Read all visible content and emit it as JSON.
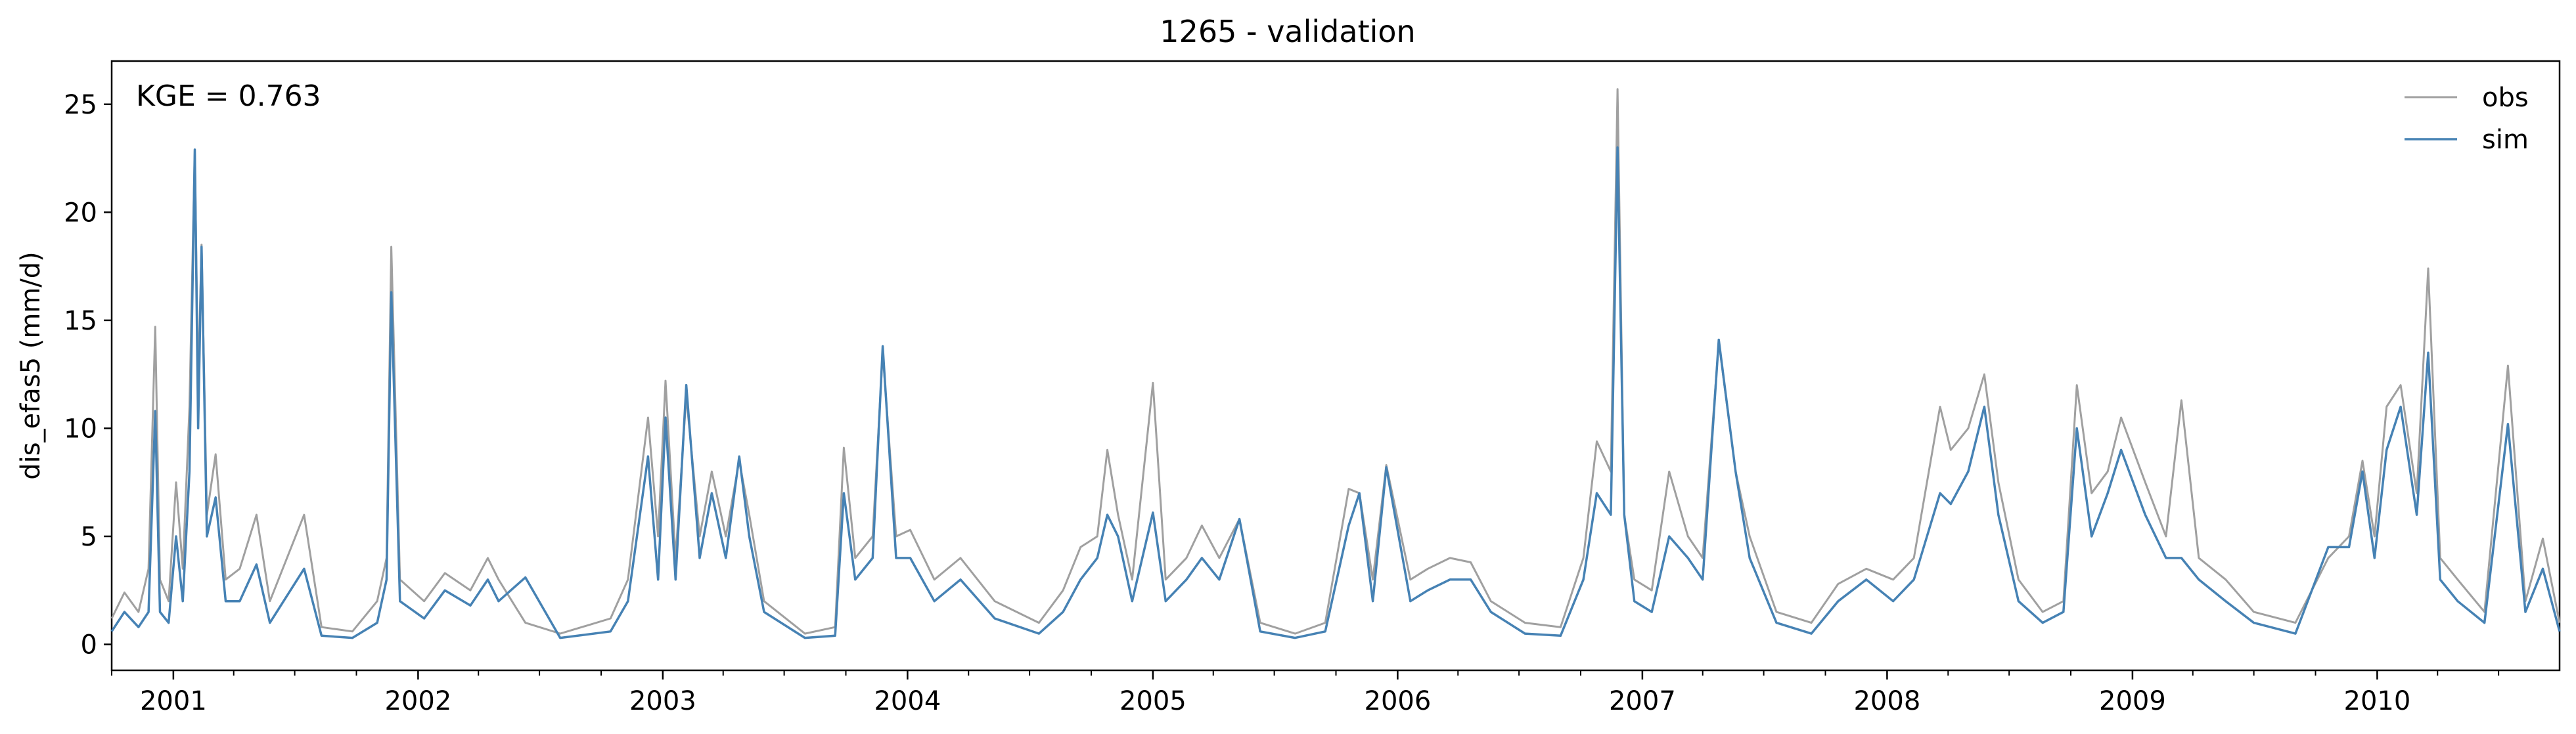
{
  "chart_data": {
    "type": "line",
    "title": "1265 - validation",
    "xlabel": "",
    "ylabel": "dis_efas5 (mm/d)",
    "annotation": "KGE = 0.763",
    "xlim": [
      "2000-10-01",
      "2010-09-30"
    ],
    "ylim": [
      -1.2,
      27
    ],
    "yticks": [
      0,
      5,
      10,
      15,
      20,
      25
    ],
    "xticks": [
      "2001-01-01",
      "2002-01-01",
      "2003-01-01",
      "2004-01-01",
      "2005-01-01",
      "2006-01-01",
      "2007-01-01",
      "2008-01-01",
      "2009-01-01",
      "2010-01-01"
    ],
    "xtick_labels": [
      "2001",
      "2002",
      "2003",
      "2004",
      "2005",
      "2006",
      "2007",
      "2008",
      "2009",
      "2010"
    ],
    "grid": false,
    "legend_position": "top-right",
    "series": [
      {
        "name": "obs",
        "color": "#a0a0a0",
        "points": [
          [
            "2000-10-01",
            1.2
          ],
          [
            "2000-10-20",
            2.4
          ],
          [
            "2000-11-10",
            1.5
          ],
          [
            "2000-11-25",
            3.5
          ],
          [
            "2000-12-05",
            14.7
          ],
          [
            "2000-12-12",
            3.0
          ],
          [
            "2000-12-25",
            2.0
          ],
          [
            "2001-01-05",
            7.5
          ],
          [
            "2001-01-15",
            3.5
          ],
          [
            "2001-01-25",
            11.0
          ],
          [
            "2001-02-02",
            22.9
          ],
          [
            "2001-02-07",
            12.0
          ],
          [
            "2001-02-12",
            18.5
          ],
          [
            "2001-02-20",
            6.0
          ],
          [
            "2001-03-05",
            8.8
          ],
          [
            "2001-03-20",
            3.0
          ],
          [
            "2001-04-10",
            3.5
          ],
          [
            "2001-05-05",
            6.0
          ],
          [
            "2001-05-25",
            2.0
          ],
          [
            "2001-07-15",
            6.0
          ],
          [
            "2001-08-10",
            0.8
          ],
          [
            "2001-09-25",
            0.6
          ],
          [
            "2001-11-01",
            2.0
          ],
          [
            "2001-11-15",
            4.0
          ],
          [
            "2001-11-22",
            18.4
          ],
          [
            "2001-12-05",
            3.0
          ],
          [
            "2002-01-10",
            2.0
          ],
          [
            "2002-02-10",
            3.3
          ],
          [
            "2002-03-20",
            2.5
          ],
          [
            "2002-04-15",
            4.0
          ],
          [
            "2002-05-01",
            3.0
          ],
          [
            "2002-06-10",
            1.0
          ],
          [
            "2002-08-01",
            0.5
          ],
          [
            "2002-10-15",
            1.2
          ],
          [
            "2002-11-10",
            3.0
          ],
          [
            "2002-12-10",
            10.5
          ],
          [
            "2002-12-25",
            5.0
          ],
          [
            "2003-01-05",
            12.2
          ],
          [
            "2003-01-20",
            4.0
          ],
          [
            "2003-02-05",
            11.5
          ],
          [
            "2003-02-25",
            5.0
          ],
          [
            "2003-03-15",
            8.0
          ],
          [
            "2003-04-05",
            5.0
          ],
          [
            "2003-04-25",
            8.5
          ],
          [
            "2003-05-10",
            6.0
          ],
          [
            "2003-06-01",
            2.0
          ],
          [
            "2003-08-01",
            0.5
          ],
          [
            "2003-09-15",
            0.8
          ],
          [
            "2003-09-28",
            9.1
          ],
          [
            "2003-10-15",
            4.0
          ],
          [
            "2003-11-10",
            5.0
          ],
          [
            "2003-11-25",
            13.5
          ],
          [
            "2003-12-15",
            5.0
          ],
          [
            "2004-01-05",
            5.3
          ],
          [
            "2004-02-10",
            3.0
          ],
          [
            "2004-03-20",
            4.0
          ],
          [
            "2004-05-10",
            2.0
          ],
          [
            "2004-07-15",
            1.0
          ],
          [
            "2004-08-20",
            2.5
          ],
          [
            "2004-09-15",
            4.5
          ],
          [
            "2004-10-10",
            5.0
          ],
          [
            "2004-10-25",
            9.0
          ],
          [
            "2004-11-10",
            6.0
          ],
          [
            "2004-12-01",
            3.0
          ],
          [
            "2005-01-01",
            12.1
          ],
          [
            "2005-01-20",
            3.0
          ],
          [
            "2005-02-20",
            4.0
          ],
          [
            "2005-03-15",
            5.5
          ],
          [
            "2005-04-10",
            4.0
          ],
          [
            "2005-05-10",
            5.8
          ],
          [
            "2005-06-10",
            1.0
          ],
          [
            "2005-08-01",
            0.5
          ],
          [
            "2005-09-15",
            1.0
          ],
          [
            "2005-10-20",
            7.2
          ],
          [
            "2005-11-05",
            7.0
          ],
          [
            "2005-11-25",
            3.0
          ],
          [
            "2005-12-15",
            8.3
          ],
          [
            "2006-01-20",
            3.0
          ],
          [
            "2006-02-15",
            3.5
          ],
          [
            "2006-03-20",
            4.0
          ],
          [
            "2006-04-20",
            3.8
          ],
          [
            "2006-05-20",
            2.0
          ],
          [
            "2006-07-10",
            1.0
          ],
          [
            "2006-09-01",
            0.8
          ],
          [
            "2006-10-05",
            4.0
          ],
          [
            "2006-10-25",
            9.4
          ],
          [
            "2006-11-15",
            8.0
          ],
          [
            "2006-11-25",
            25.7
          ],
          [
            "2006-12-05",
            6.0
          ],
          [
            "2006-12-20",
            3.0
          ],
          [
            "2007-01-15",
            2.5
          ],
          [
            "2007-02-10",
            8.0
          ],
          [
            "2007-03-10",
            5.0
          ],
          [
            "2007-04-01",
            4.0
          ],
          [
            "2007-04-25",
            14.0
          ],
          [
            "2007-05-20",
            8.0
          ],
          [
            "2007-06-10",
            5.0
          ],
          [
            "2007-07-20",
            1.5
          ],
          [
            "2007-09-10",
            1.0
          ],
          [
            "2007-10-20",
            2.8
          ],
          [
            "2007-12-01",
            3.5
          ],
          [
            "2008-01-10",
            3.0
          ],
          [
            "2008-02-10",
            4.0
          ],
          [
            "2008-03-20",
            11.0
          ],
          [
            "2008-04-05",
            9.0
          ],
          [
            "2008-05-01",
            10.0
          ],
          [
            "2008-05-25",
            12.5
          ],
          [
            "2008-06-15",
            7.5
          ],
          [
            "2008-07-15",
            3.0
          ],
          [
            "2008-08-20",
            1.5
          ],
          [
            "2008-09-20",
            2.0
          ],
          [
            "2008-10-10",
            12.0
          ],
          [
            "2008-11-01",
            7.0
          ],
          [
            "2008-11-25",
            8.0
          ],
          [
            "2008-12-15",
            10.5
          ],
          [
            "2009-01-20",
            7.5
          ],
          [
            "2009-02-20",
            5.0
          ],
          [
            "2009-03-15",
            11.3
          ],
          [
            "2009-04-10",
            4.0
          ],
          [
            "2009-05-20",
            3.0
          ],
          [
            "2009-07-01",
            1.5
          ],
          [
            "2009-09-01",
            1.0
          ],
          [
            "2009-10-20",
            4.0
          ],
          [
            "2009-11-20",
            5.0
          ],
          [
            "2009-12-10",
            8.5
          ],
          [
            "2009-12-28",
            5.0
          ],
          [
            "2010-01-15",
            11.0
          ],
          [
            "2010-02-05",
            12.0
          ],
          [
            "2010-03-01",
            7.0
          ],
          [
            "2010-03-18",
            17.4
          ],
          [
            "2010-04-05",
            4.0
          ],
          [
            "2010-05-01",
            3.0
          ],
          [
            "2010-06-10",
            1.5
          ],
          [
            "2010-07-15",
            12.9
          ],
          [
            "2010-08-10",
            2.0
          ],
          [
            "2010-09-05",
            4.9
          ],
          [
            "2010-09-30",
            1.0
          ]
        ]
      },
      {
        "name": "sim",
        "color": "#4682b4",
        "points": [
          [
            "2000-10-01",
            0.6
          ],
          [
            "2000-10-20",
            1.5
          ],
          [
            "2000-11-10",
            0.8
          ],
          [
            "2000-11-25",
            1.5
          ],
          [
            "2000-12-05",
            10.8
          ],
          [
            "2000-12-12",
            1.5
          ],
          [
            "2000-12-25",
            1.0
          ],
          [
            "2001-01-05",
            5.0
          ],
          [
            "2001-01-15",
            2.0
          ],
          [
            "2001-01-25",
            8.0
          ],
          [
            "2001-02-02",
            22.9
          ],
          [
            "2001-02-07",
            10.0
          ],
          [
            "2001-02-12",
            18.4
          ],
          [
            "2001-02-20",
            5.0
          ],
          [
            "2001-03-05",
            6.8
          ],
          [
            "2001-03-20",
            2.0
          ],
          [
            "2001-04-10",
            2.0
          ],
          [
            "2001-05-05",
            3.7
          ],
          [
            "2001-05-25",
            1.0
          ],
          [
            "2001-07-15",
            3.5
          ],
          [
            "2001-08-10",
            0.4
          ],
          [
            "2001-09-25",
            0.3
          ],
          [
            "2001-11-01",
            1.0
          ],
          [
            "2001-11-15",
            3.0
          ],
          [
            "2001-11-22",
            16.3
          ],
          [
            "2001-12-05",
            2.0
          ],
          [
            "2002-01-10",
            1.2
          ],
          [
            "2002-02-10",
            2.5
          ],
          [
            "2002-03-20",
            1.8
          ],
          [
            "2002-04-15",
            3.0
          ],
          [
            "2002-05-01",
            2.0
          ],
          [
            "2002-06-10",
            3.1
          ],
          [
            "2002-08-01",
            0.3
          ],
          [
            "2002-10-15",
            0.6
          ],
          [
            "2002-11-10",
            2.0
          ],
          [
            "2002-12-10",
            8.7
          ],
          [
            "2002-12-25",
            3.0
          ],
          [
            "2003-01-05",
            10.5
          ],
          [
            "2003-01-20",
            3.0
          ],
          [
            "2003-02-05",
            12.0
          ],
          [
            "2003-02-25",
            4.0
          ],
          [
            "2003-03-15",
            7.0
          ],
          [
            "2003-04-05",
            4.0
          ],
          [
            "2003-04-25",
            8.7
          ],
          [
            "2003-05-10",
            5.0
          ],
          [
            "2003-06-01",
            1.5
          ],
          [
            "2003-08-01",
            0.3
          ],
          [
            "2003-09-15",
            0.4
          ],
          [
            "2003-09-28",
            7.0
          ],
          [
            "2003-10-15",
            3.0
          ],
          [
            "2003-11-10",
            4.0
          ],
          [
            "2003-11-25",
            13.8
          ],
          [
            "2003-12-15",
            4.0
          ],
          [
            "2004-01-05",
            4.0
          ],
          [
            "2004-02-10",
            2.0
          ],
          [
            "2004-03-20",
            3.0
          ],
          [
            "2004-05-10",
            1.2
          ],
          [
            "2004-07-15",
            0.5
          ],
          [
            "2004-08-20",
            1.5
          ],
          [
            "2004-09-15",
            3.0
          ],
          [
            "2004-10-10",
            4.0
          ],
          [
            "2004-10-25",
            6.0
          ],
          [
            "2004-11-10",
            5.0
          ],
          [
            "2004-12-01",
            2.0
          ],
          [
            "2005-01-01",
            6.1
          ],
          [
            "2005-01-20",
            2.0
          ],
          [
            "2005-02-20",
            3.0
          ],
          [
            "2005-03-15",
            4.0
          ],
          [
            "2005-04-10",
            3.0
          ],
          [
            "2005-05-10",
            5.8
          ],
          [
            "2005-06-10",
            0.6
          ],
          [
            "2005-08-01",
            0.3
          ],
          [
            "2005-09-15",
            0.6
          ],
          [
            "2005-10-20",
            5.5
          ],
          [
            "2005-11-05",
            7.0
          ],
          [
            "2005-11-25",
            2.0
          ],
          [
            "2005-12-15",
            8.2
          ],
          [
            "2006-01-20",
            2.0
          ],
          [
            "2006-02-15",
            2.5
          ],
          [
            "2006-03-20",
            3.0
          ],
          [
            "2006-04-20",
            3.0
          ],
          [
            "2006-05-20",
            1.5
          ],
          [
            "2006-07-10",
            0.5
          ],
          [
            "2006-09-01",
            0.4
          ],
          [
            "2006-10-05",
            3.0
          ],
          [
            "2006-10-25",
            7.0
          ],
          [
            "2006-11-15",
            6.0
          ],
          [
            "2006-11-25",
            23.0
          ],
          [
            "2006-12-05",
            6.0
          ],
          [
            "2006-12-20",
            2.0
          ],
          [
            "2007-01-15",
            1.5
          ],
          [
            "2007-02-10",
            5.0
          ],
          [
            "2007-03-10",
            4.0
          ],
          [
            "2007-04-01",
            3.0
          ],
          [
            "2007-04-25",
            14.1
          ],
          [
            "2007-05-20",
            8.0
          ],
          [
            "2007-06-10",
            4.0
          ],
          [
            "2007-07-20",
            1.0
          ],
          [
            "2007-09-10",
            0.5
          ],
          [
            "2007-10-20",
            2.0
          ],
          [
            "2007-12-01",
            3.0
          ],
          [
            "2008-01-10",
            2.0
          ],
          [
            "2008-02-10",
            3.0
          ],
          [
            "2008-03-20",
            7.0
          ],
          [
            "2008-04-05",
            6.5
          ],
          [
            "2008-05-01",
            8.0
          ],
          [
            "2008-05-25",
            11.0
          ],
          [
            "2008-06-15",
            6.0
          ],
          [
            "2008-07-15",
            2.0
          ],
          [
            "2008-08-20",
            1.0
          ],
          [
            "2008-09-20",
            1.5
          ],
          [
            "2008-10-10",
            10.0
          ],
          [
            "2008-11-01",
            5.0
          ],
          [
            "2008-11-25",
            7.0
          ],
          [
            "2008-12-15",
            9.0
          ],
          [
            "2009-01-20",
            6.0
          ],
          [
            "2009-02-20",
            4.0
          ],
          [
            "2009-03-15",
            4.0
          ],
          [
            "2009-04-10",
            3.0
          ],
          [
            "2009-05-20",
            2.0
          ],
          [
            "2009-07-01",
            1.0
          ],
          [
            "2009-09-01",
            0.5
          ],
          [
            "2009-10-20",
            4.5
          ],
          [
            "2009-11-20",
            4.5
          ],
          [
            "2009-12-10",
            8.0
          ],
          [
            "2009-12-28",
            4.0
          ],
          [
            "2010-01-15",
            9.0
          ],
          [
            "2010-02-05",
            11.0
          ],
          [
            "2010-03-01",
            6.0
          ],
          [
            "2010-03-18",
            13.5
          ],
          [
            "2010-04-05",
            3.0
          ],
          [
            "2010-05-01",
            2.0
          ],
          [
            "2010-06-10",
            1.0
          ],
          [
            "2010-07-15",
            10.2
          ],
          [
            "2010-08-10",
            1.5
          ],
          [
            "2010-09-05",
            3.5
          ],
          [
            "2010-09-30",
            0.6
          ]
        ]
      }
    ]
  }
}
